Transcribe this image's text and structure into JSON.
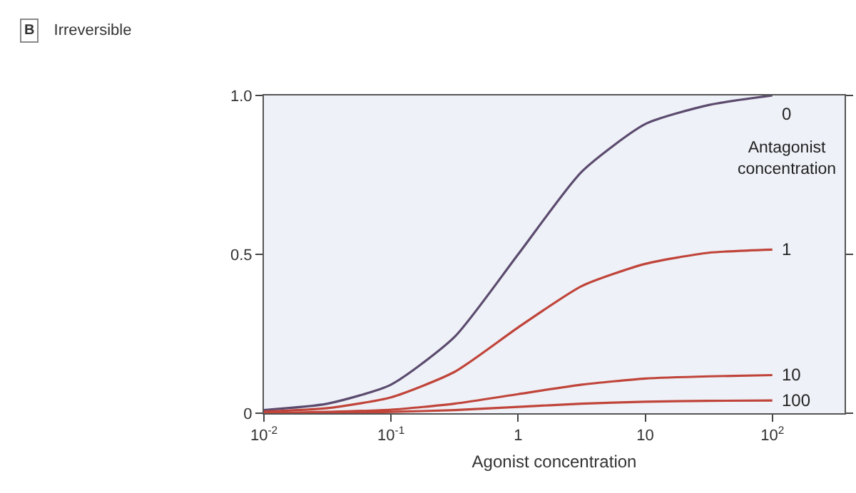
{
  "chart_data": {
    "type": "line",
    "title": "Irreversible",
    "annotations": [
      "B"
    ],
    "xlabel": "Agonist concentration",
    "legend_title": "Antagonist concentration",
    "log": "x",
    "legend": false,
    "grid": false,
    "marker": "none",
    "line_style": "solid",
    "x": [
      0.01,
      0.0316,
      0.1,
      0.316,
      1,
      3.16,
      10,
      31.6,
      100
    ],
    "series": [
      {
        "name": "0",
        "color": "#5b4a6e",
        "values": [
          0.01,
          0.03,
          0.09,
          0.24,
          0.5,
          0.76,
          0.91,
          0.97,
          1.0
        ]
      },
      {
        "name": "1",
        "color": "#c0443a",
        "values": [
          0.005,
          0.016,
          0.05,
          0.13,
          0.27,
          0.4,
          0.47,
          0.505,
          0.515
        ]
      },
      {
        "name": "10",
        "color": "#c0443a",
        "values": [
          0.0,
          0.004,
          0.011,
          0.03,
          0.06,
          0.09,
          0.109,
          0.116,
          0.12
        ]
      },
      {
        "name": "100",
        "color": "#c0443a",
        "values": [
          0.0,
          0.001,
          0.004,
          0.01,
          0.02,
          0.03,
          0.036,
          0.039,
          0.04
        ]
      }
    ],
    "xlim": [
      0.01,
      370
    ],
    "xticks": [
      {
        "value": 0.01,
        "label": "10$^{-2}$"
      },
      {
        "value": 0.1,
        "label": "10$^{-1}$"
      },
      1,
      10,
      {
        "value": 100,
        "label": "10$^{2}$"
      }
    ],
    "ylim": [
      0,
      1
    ],
    "yticks": [
      0,
      0.5,
      {
        "value": 1,
        "label": "1.0"
      }
    ]
  }
}
